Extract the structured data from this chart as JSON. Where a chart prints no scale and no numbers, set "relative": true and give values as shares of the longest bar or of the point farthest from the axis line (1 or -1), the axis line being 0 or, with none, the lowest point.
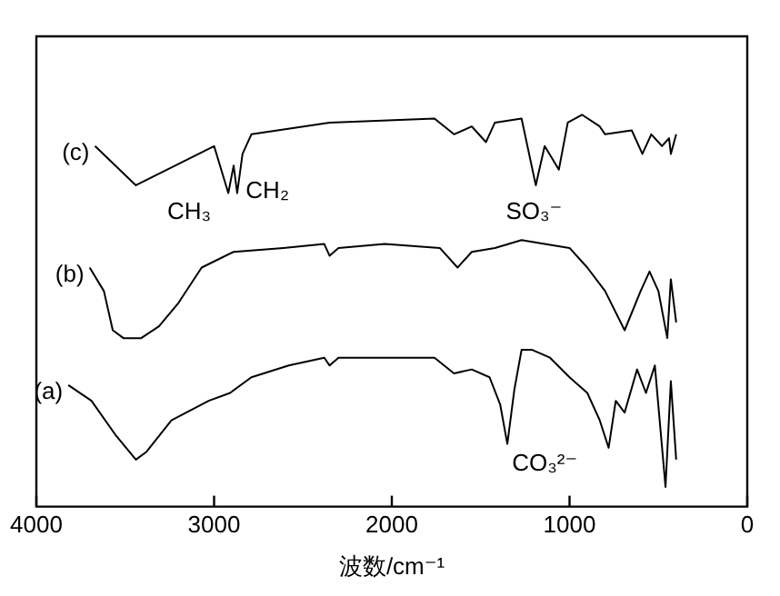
{
  "chart_data": {
    "type": "line",
    "xlabel": "波数/cm⁻¹",
    "relative": true,
    "xlim": [
      4000,
      0
    ],
    "xticks": [
      4000,
      3000,
      2000,
      1000,
      0
    ],
    "grid": false,
    "legend": false,
    "marker": "none",
    "line_style": "solid",
    "series": [
      {
        "name": "(a)",
        "color": "#000000",
        "x": [
          3820,
          3690,
          3550,
          3440,
          3380,
          3240,
          3030,
          2910,
          2790,
          2580,
          2380,
          2350,
          2300,
          1760,
          1650,
          1550,
          1450,
          1390,
          1350,
          1310,
          1270,
          1210,
          1110,
          1000,
          900,
          830,
          780,
          740,
          690,
          620,
          570,
          520,
          460,
          430,
          400
        ],
        "values": [
          0.31,
          0.27,
          0.18,
          0.12,
          0.14,
          0.22,
          0.27,
          0.29,
          0.33,
          0.36,
          0.38,
          0.36,
          0.38,
          0.38,
          0.34,
          0.35,
          0.33,
          0.26,
          0.16,
          0.3,
          0.4,
          0.4,
          0.38,
          0.33,
          0.29,
          0.22,
          0.15,
          0.27,
          0.24,
          0.35,
          0.29,
          0.36,
          0.05,
          0.32,
          0.12
        ]
      },
      {
        "name": "(b)",
        "color": "#000000",
        "x": [
          3700,
          3620,
          3570,
          3510,
          3410,
          3310,
          3200,
          3070,
          2890,
          2610,
          2380,
          2350,
          2300,
          2040,
          1730,
          1630,
          1550,
          1420,
          1270,
          1140,
          1000,
          900,
          800,
          690,
          600,
          550,
          500,
          450,
          430,
          400
        ],
        "values": [
          0.61,
          0.55,
          0.45,
          0.43,
          0.43,
          0.46,
          0.52,
          0.61,
          0.65,
          0.66,
          0.67,
          0.64,
          0.66,
          0.67,
          0.66,
          0.61,
          0.65,
          0.66,
          0.68,
          0.67,
          0.66,
          0.61,
          0.55,
          0.45,
          0.55,
          0.6,
          0.55,
          0.43,
          0.58,
          0.47
        ]
      },
      {
        "name": "(c)",
        "color": "#000000",
        "x": [
          3670,
          3440,
          3000,
          2920,
          2890,
          2870,
          2840,
          2790,
          2350,
          1760,
          1650,
          1550,
          1470,
          1420,
          1270,
          1190,
          1140,
          1060,
          1010,
          930,
          830,
          800,
          650,
          590,
          540,
          480,
          440,
          430,
          400
        ],
        "values": [
          0.92,
          0.82,
          0.92,
          0.8,
          0.87,
          0.8,
          0.9,
          0.95,
          0.98,
          0.99,
          0.95,
          0.97,
          0.93,
          0.98,
          0.99,
          0.82,
          0.92,
          0.86,
          0.98,
          1.0,
          0.97,
          0.95,
          0.96,
          0.9,
          0.95,
          0.92,
          0.94,
          0.9,
          0.95
        ]
      }
    ],
    "annotations": [
      "CH₃",
      "CH₂",
      "SO₃⁻",
      "CO₃²⁻"
    ]
  }
}
